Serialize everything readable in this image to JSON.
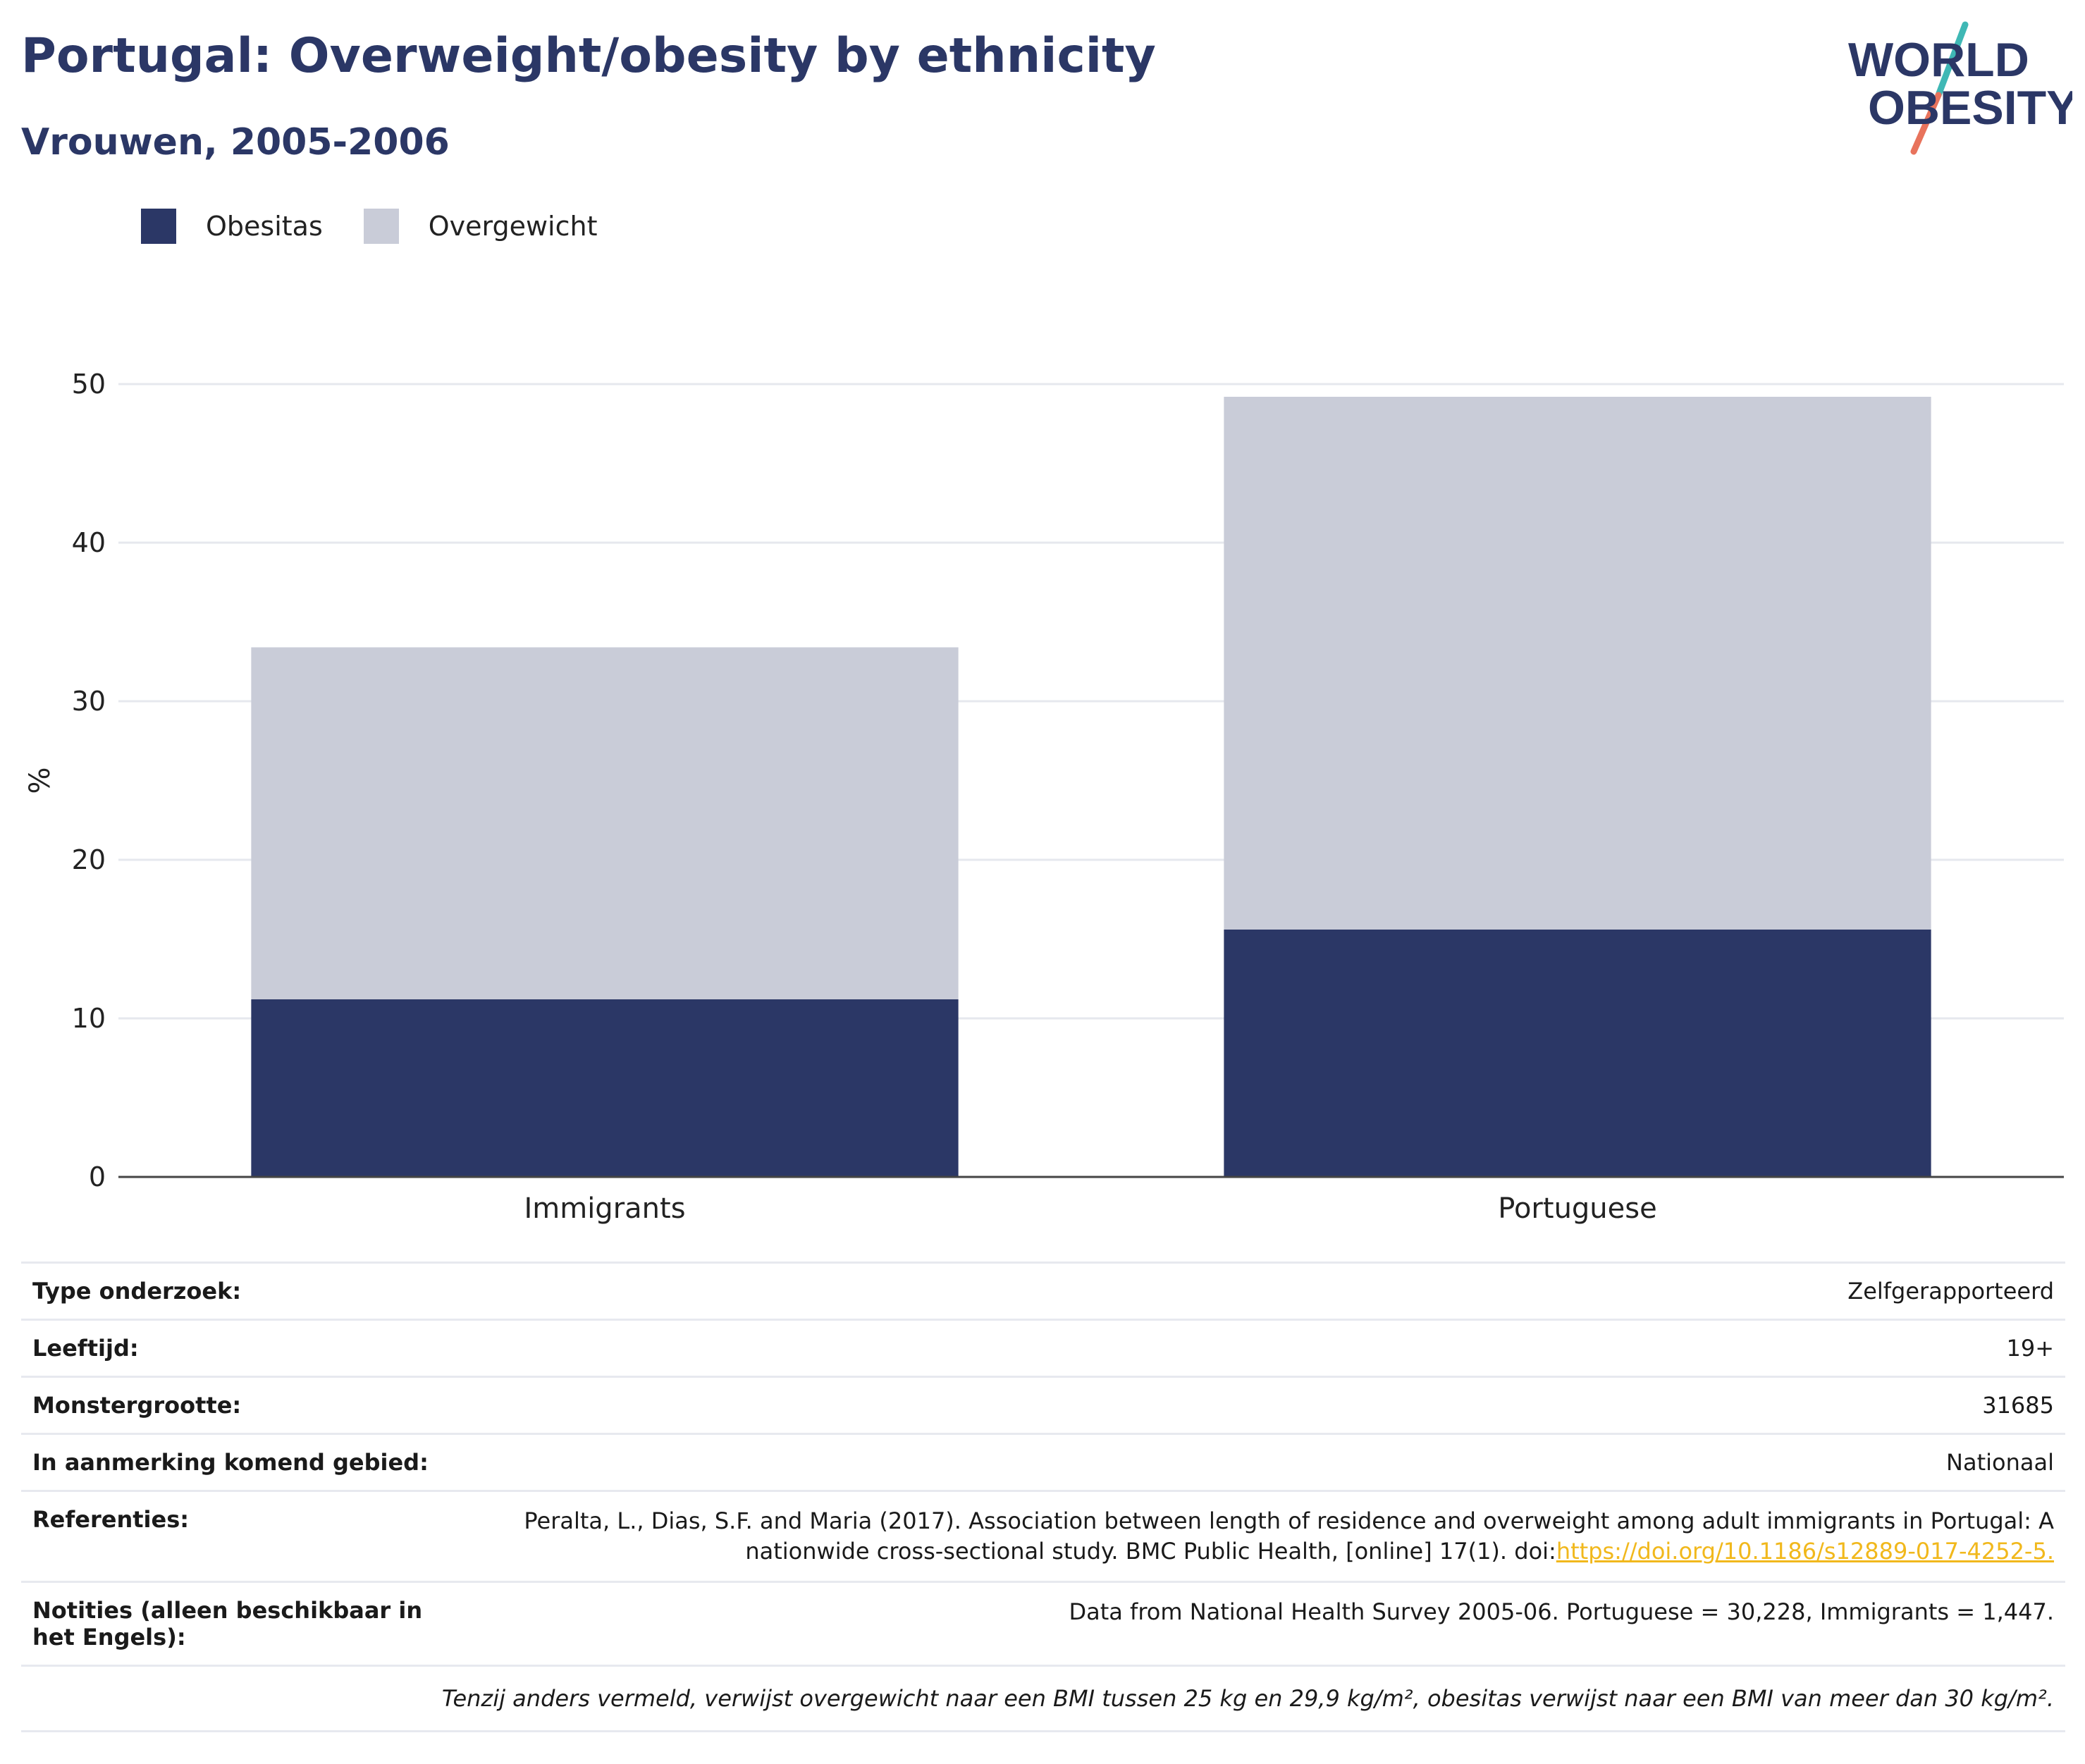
{
  "header": {
    "title": "Portugal: Overweight/obesity by ethnicity",
    "subtitle": "Vrouwen, 2005-2006"
  },
  "logo": {
    "line1": "WORLD",
    "line2": "OBESITY",
    "colors": {
      "text": "#2b3766",
      "slash_top": "#3fb8b5",
      "slash_bottom": "#e8735c"
    }
  },
  "legend": [
    {
      "label": "Obesitas",
      "color": "#2b3766"
    },
    {
      "label": "Overgewicht",
      "color": "#c9ccd8"
    }
  ],
  "chart_data": {
    "type": "bar",
    "stacked": true,
    "categories": [
      "Immigrants",
      "Portuguese"
    ],
    "series": [
      {
        "name": "Obesitas",
        "values": [
          11.2,
          15.6
        ],
        "color": "#2b3766"
      },
      {
        "name": "Overgewicht",
        "values": [
          22.2,
          33.6
        ],
        "color": "#c9ccd8"
      }
    ],
    "ylabel": "%",
    "ylim": [
      0,
      50
    ],
    "yticks": [
      0,
      10,
      20,
      30,
      40,
      50
    ],
    "grid": true,
    "legend_position": "top-left"
  },
  "info": {
    "survey_type": {
      "label": "Type onderzoek:",
      "value": "Zelfgerapporteerd"
    },
    "age": {
      "label": "Leeftijd:",
      "value": "19+"
    },
    "sample": {
      "label": "Monstergrootte:",
      "value": "31685"
    },
    "area": {
      "label": "In aanmerking komend gebied:",
      "value": "Nationaal"
    },
    "references": {
      "label": "Referenties:",
      "text": "Peralta, L., Dias, S.F. and Maria (2017). Association between length of residence and overweight among adult immigrants in Portugal: A nationwide cross-sectional study. BMC Public Health, [online] 17(1). doi:",
      "link": "https://doi.org/10.1186/s12889-017-4252-5."
    },
    "notes": {
      "label": "Notities (alleen beschikbaar in het Engels):",
      "value": "Data from National Health Survey 2005-06. Portuguese = 30,228, Immigrants = 1,447."
    },
    "footnote": "Tenzij anders vermeld, verwijst overgewicht naar een BMI tussen 25 kg en 29,9 kg/m², obesitas verwijst naar een BMI van meer dan 30 kg/m²."
  }
}
